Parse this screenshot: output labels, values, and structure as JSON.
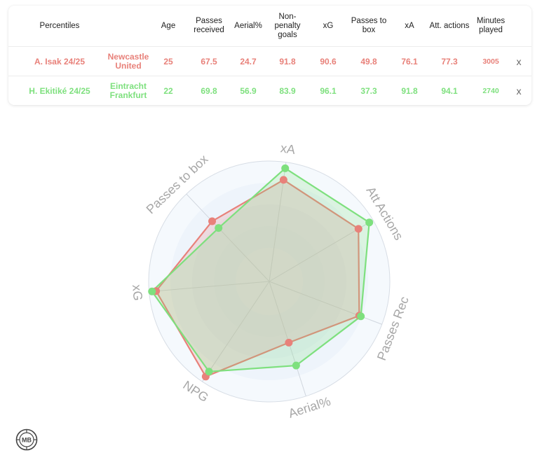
{
  "table": {
    "headers": [
      "Percentiles",
      "",
      "Age",
      "Passes received",
      "Aerial%",
      "Non-penalty goals",
      "xG",
      "Passes to box",
      "xA",
      "Att. actions",
      "Minutes played"
    ],
    "remove_label": "x",
    "rows": [
      {
        "player": "A. Isak 24/25",
        "team": "Newcastle United",
        "color": "#e8817a",
        "values": [
          "25",
          "67.5",
          "24.7",
          "91.8",
          "90.6",
          "49.8",
          "76.1",
          "77.3",
          "3005"
        ]
      },
      {
        "player": "H. Ekitiké 24/25",
        "team": "Eintracht Frankfurt",
        "color": "#7ee07e",
        "values": [
          "22",
          "69.8",
          "56.9",
          "83.9",
          "96.1",
          "37.3",
          "91.8",
          "94.1",
          "2740"
        ]
      }
    ]
  },
  "chart_data": {
    "type": "radar",
    "axes": [
      "xA",
      "Att Actions",
      "Passes Rec",
      "Aerial%",
      "NPG",
      "xG",
      "Passes to box"
    ],
    "range": [
      0,
      100
    ],
    "grid": true,
    "series": [
      {
        "name": "A. Isak 24/25",
        "color": "#e8817a",
        "values": [
          76.1,
          77.3,
          67.5,
          24.7,
          91.8,
          90.6,
          49.8
        ]
      },
      {
        "name": "H. Ekitiké 24/25",
        "color": "#7ee07e",
        "values": [
          91.8,
          94.1,
          69.8,
          56.9,
          83.9,
          96.1,
          37.3
        ]
      }
    ]
  },
  "logo": {
    "text": "MB"
  }
}
